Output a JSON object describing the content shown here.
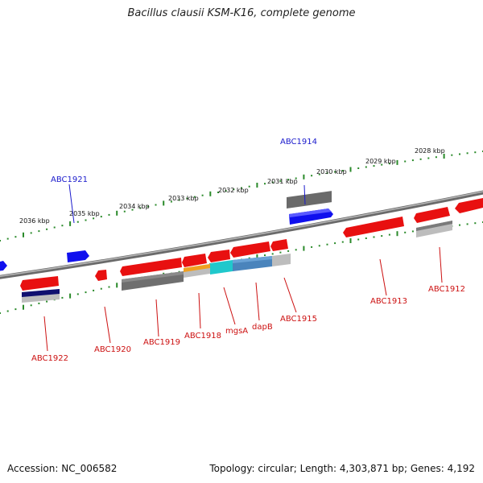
{
  "title": "Bacillus clausii KSM-K16, complete genome",
  "footer": {
    "accession": "Accession: NC_006582",
    "summary": "Topology: circular; Length: 4,303,871 bp; Genes: 4,192"
  },
  "colors": {
    "backbone": "#7a7a7a",
    "ticks": "#2a8a2a",
    "forward_gene": "#1010ee",
    "forward_label": "#1a1acc",
    "reverse_gene": "#e81010",
    "reverse_label": "#cc1010",
    "cds_gray": "#6f6f6f",
    "cds_light": "#bdbdbd",
    "cds_orange": "#f0a020",
    "cds_cyan": "#20c8cc",
    "cds_blue": "#4a84bc",
    "cds_navy": "#101070"
  },
  "scale_labels": [
    "2028 kbp",
    "2029 kbp",
    "2030 kbp",
    "2031 kbp",
    "2032 kbp",
    "2033 kbp",
    "2034 kbp",
    "2035 kbp",
    "2036 kbp"
  ],
  "forward_gene_labels": [
    "ABC1914",
    "ABC1921"
  ],
  "reverse_gene_labels": [
    "ABC1912",
    "ABC1913",
    "ABC1915",
    "dapB",
    "mgsA",
    "ABC1918",
    "ABC1919",
    "ABC1920",
    "ABC1922"
  ]
}
